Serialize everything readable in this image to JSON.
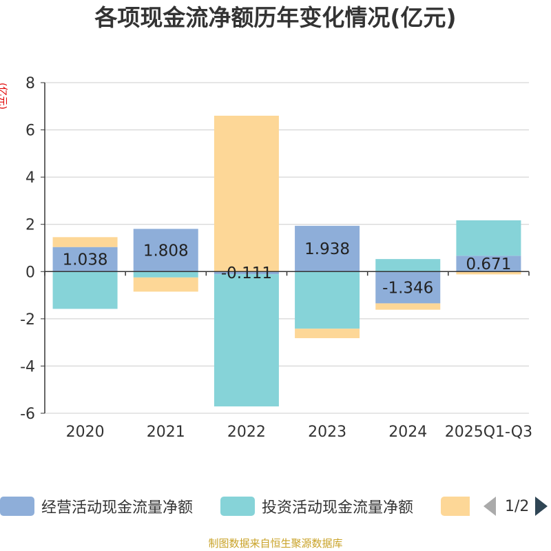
{
  "chart_data": {
    "type": "bar",
    "stacked": true,
    "title": "各项现金流净额历年变化情况(亿元)",
    "ylabel": "(亿元)",
    "ylim": [
      -6,
      8
    ],
    "yticks": [
      8,
      6,
      4,
      2,
      0,
      -2,
      -4,
      -6
    ],
    "ytick_labels": [
      "8",
      "6",
      "4",
      "2",
      "0",
      "-2",
      "-4",
      "-6"
    ],
    "grid": true,
    "categories": [
      "2020",
      "2021",
      "2022",
      "2023",
      "2024",
      "2025Q1-Q3"
    ],
    "series": [
      {
        "name": "经营活动现金流量净额",
        "color": "#8eaed9",
        "values": [
          1.038,
          1.808,
          -0.111,
          1.938,
          -1.346,
          0.671
        ]
      },
      {
        "name": "投资活动现金流量净额",
        "color": "#86d3d8",
        "values": [
          -1.58,
          -0.25,
          -5.6,
          -2.42,
          0.53,
          1.5
        ]
      },
      {
        "name": "",
        "color": "#fdd797",
        "values": [
          0.42,
          -0.6,
          6.6,
          -0.4,
          -0.27,
          -0.12
        ]
      }
    ],
    "data_labels": [
      "1.038",
      "1.808",
      "-0.111",
      "1.938",
      "-1.346",
      "0.671"
    ],
    "legend_position": "bottom"
  },
  "legend": {
    "items": [
      "经营活动现金流量净额",
      "投资活动现金流量净额",
      ""
    ],
    "page": "1/2"
  },
  "source": "制图数据来自恒生聚源数据库"
}
